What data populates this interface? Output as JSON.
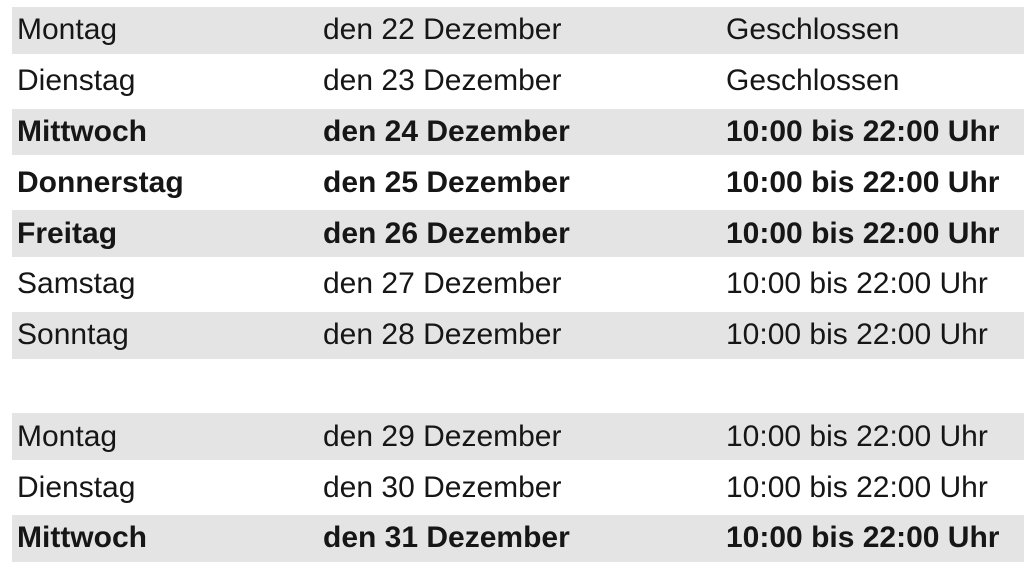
{
  "colors": {
    "row_shade": "#e4e4e4",
    "page_background": "#ffffff",
    "text": "#161616"
  },
  "table": {
    "rows": [
      {
        "day": "Montag",
        "date": "den 22 Dezember",
        "hours": "Geschlossen"
      },
      {
        "day": "Dienstag",
        "date": "den 23 Dezember",
        "hours": "Geschlossen"
      },
      {
        "day": "Mittwoch",
        "date": "den 24 Dezember",
        "hours": "10:00 bis 22:00 Uhr"
      },
      {
        "day": "Donnerstag",
        "date": "den 25 Dezember",
        "hours": "10:00 bis 22:00 Uhr"
      },
      {
        "day": "Freitag",
        "date": "den 26 Dezember",
        "hours": "10:00 bis 22:00 Uhr"
      },
      {
        "day": "Samstag",
        "date": "den 27 Dezember",
        "hours": "10:00 bis 22:00 Uhr"
      },
      {
        "day": "Sonntag",
        "date": "den 28 Dezember",
        "hours": "10:00 bis 22:00 Uhr"
      },
      {
        "day": "Montag",
        "date": "den 29 Dezember",
        "hours": "10:00 bis 22:00 Uhr"
      },
      {
        "day": "Dienstag",
        "date": "den 30 Dezember",
        "hours": "10:00 bis 22:00 Uhr"
      },
      {
        "day": "Mittwoch",
        "date": "den 31 Dezember",
        "hours": "10:00 bis 22:00 Uhr"
      }
    ]
  }
}
